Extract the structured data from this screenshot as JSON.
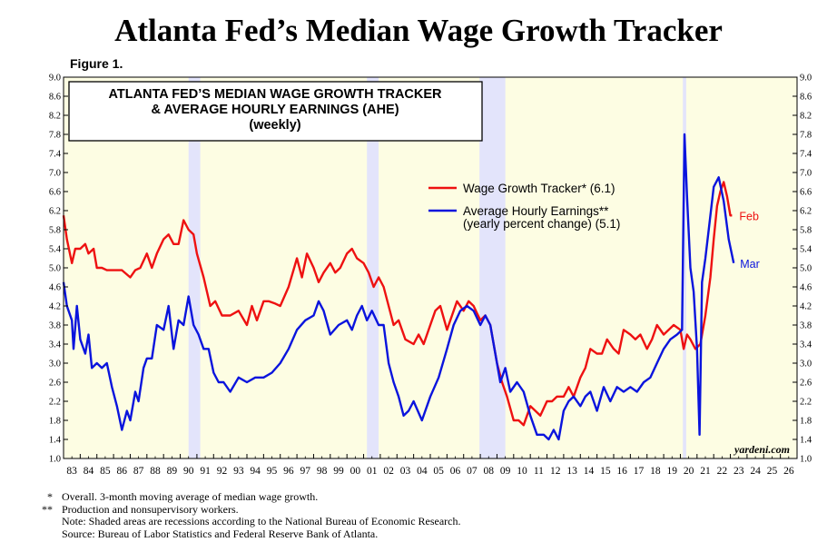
{
  "title": "Atlanta Fed’s Median Wage Growth Tracker",
  "figure_label": "Figure 1.",
  "source_watermark": "yardeni.com",
  "footnotes": [
    {
      "mark": "*",
      "text": "Overall. 3-month moving average of median wage growth."
    },
    {
      "mark": "**",
      "text": "Production and nonsupervisory workers."
    },
    {
      "mark": "",
      "text": "Note: Shaded areas are recessions according to the National Bureau of Economic Research."
    },
    {
      "mark": "",
      "text": "Source: Bureau of Labor Statistics and Federal Reserve Bank of Atlanta."
    }
  ],
  "colors": {
    "tracker": "#ee1111",
    "ahe": "#0a14dd",
    "plot_bg": "#fdfde3",
    "recession": "#e3e4fb"
  },
  "chart_data": {
    "type": "line",
    "title": "ATLANTA FED’S MEDIAN WAGE GROWTH TRACKER & AVERAGE HOURLY EARNINGS (AHE) (weekly)",
    "title_lines": [
      "ATLANTA FED’S MEDIAN WAGE GROWTH TRACKER",
      "& AVERAGE HOURLY EARNINGS (AHE)",
      "(weekly)"
    ],
    "xlabel": "",
    "ylabel": "",
    "xlim": [
      1983,
      2027
    ],
    "ylim": [
      1.0,
      9.0
    ],
    "yticks": [
      1.0,
      1.4,
      1.8,
      2.2,
      2.6,
      3.0,
      3.4,
      3.8,
      4.2,
      4.6,
      5.0,
      5.4,
      5.8,
      6.2,
      6.6,
      7.0,
      7.4,
      7.8,
      8.2,
      8.6,
      9.0
    ],
    "xtick_labels": [
      "83",
      "84",
      "85",
      "86",
      "87",
      "88",
      "89",
      "90",
      "91",
      "92",
      "93",
      "94",
      "95",
      "96",
      "97",
      "98",
      "99",
      "00",
      "01",
      "02",
      "03",
      "04",
      "05",
      "06",
      "07",
      "08",
      "09",
      "10",
      "11",
      "12",
      "13",
      "14",
      "15",
      "16",
      "17",
      "18",
      "19",
      "20",
      "21",
      "22",
      "23",
      "24",
      "25",
      "26"
    ],
    "grid": false,
    "legend_position": "upper-right",
    "recessions": [
      [
        1990.5,
        1991.2
      ],
      [
        2001.2,
        2001.9
      ],
      [
        2007.95,
        2009.5
      ],
      [
        2020.15,
        2020.35
      ]
    ],
    "series": [
      {
        "name": "Wage Growth Tracker* (6.1)",
        "end_label": "Feb",
        "x": [
          1983.0,
          1983.2,
          1983.5,
          1983.7,
          1984.0,
          1984.3,
          1984.5,
          1984.8,
          1985.0,
          1985.3,
          1985.6,
          1986.0,
          1986.5,
          1987.0,
          1987.3,
          1987.6,
          1988.0,
          1988.3,
          1988.6,
          1989.0,
          1989.3,
          1989.6,
          1989.9,
          1990.2,
          1990.5,
          1990.8,
          1991.0,
          1991.4,
          1991.8,
          1992.1,
          1992.5,
          1993.0,
          1993.5,
          1994.0,
          1994.3,
          1994.6,
          1995.0,
          1995.3,
          1995.7,
          1996.0,
          1996.5,
          1997.0,
          1997.3,
          1997.6,
          1998.0,
          1998.3,
          1998.6,
          1999.0,
          1999.3,
          1999.6,
          2000.0,
          2000.3,
          2000.6,
          2001.0,
          2001.3,
          2001.6,
          2001.9,
          2002.2,
          2002.5,
          2002.8,
          2003.1,
          2003.5,
          2004.0,
          2004.3,
          2004.6,
          2005.0,
          2005.3,
          2005.6,
          2006.0,
          2006.3,
          2006.6,
          2007.0,
          2007.3,
          2007.6,
          2008.0,
          2008.3,
          2008.6,
          2009.0,
          2009.3,
          2009.6,
          2010.0,
          2010.3,
          2010.6,
          2011.0,
          2011.3,
          2011.6,
          2012.0,
          2012.3,
          2012.6,
          2013.0,
          2013.3,
          2013.6,
          2014.0,
          2014.3,
          2014.6,
          2015.0,
          2015.3,
          2015.6,
          2016.0,
          2016.3,
          2016.6,
          2017.0,
          2017.3,
          2017.6,
          2018.0,
          2018.3,
          2018.6,
          2019.0,
          2019.3,
          2019.6,
          2020.0,
          2020.2,
          2020.4,
          2020.6,
          2020.9,
          2021.2,
          2021.5,
          2021.8,
          2022.0,
          2022.2,
          2022.4,
          2022.6,
          2022.8,
          2023.0,
          2023.1
        ],
        "y": [
          6.1,
          5.6,
          5.1,
          5.4,
          5.4,
          5.5,
          5.3,
          5.4,
          5.0,
          5.0,
          4.95,
          4.95,
          4.95,
          4.8,
          4.95,
          5.0,
          5.3,
          5.0,
          5.3,
          5.6,
          5.7,
          5.5,
          5.5,
          6.0,
          5.8,
          5.7,
          5.3,
          4.8,
          4.2,
          4.3,
          4.0,
          4.0,
          4.1,
          3.8,
          4.2,
          3.9,
          4.3,
          4.3,
          4.25,
          4.2,
          4.6,
          5.2,
          4.8,
          5.3,
          5.0,
          4.7,
          4.9,
          5.1,
          4.9,
          5.0,
          5.3,
          5.4,
          5.2,
          5.1,
          4.9,
          4.6,
          4.8,
          4.6,
          4.2,
          3.8,
          3.9,
          3.5,
          3.4,
          3.6,
          3.4,
          3.8,
          4.1,
          4.2,
          3.7,
          4.0,
          4.3,
          4.1,
          4.3,
          4.2,
          3.9,
          4.0,
          3.8,
          3.0,
          2.6,
          2.3,
          1.8,
          1.8,
          1.7,
          2.1,
          2.0,
          1.9,
          2.2,
          2.2,
          2.3,
          2.3,
          2.5,
          2.3,
          2.7,
          2.9,
          3.3,
          3.2,
          3.2,
          3.5,
          3.3,
          3.2,
          3.7,
          3.6,
          3.5,
          3.6,
          3.3,
          3.5,
          3.8,
          3.6,
          3.7,
          3.8,
          3.7,
          3.3,
          3.6,
          3.5,
          3.3,
          3.4,
          4.0,
          4.8,
          5.6,
          6.3,
          6.6,
          6.8,
          6.5,
          6.1,
          6.1
        ]
      },
      {
        "name": "Average Hourly Earnings** (yearly percent change) (5.1)",
        "legend_lines": [
          "Average Hourly Earnings**",
          "(yearly percent change) (5.1)"
        ],
        "end_label": "Mar",
        "x": [
          1983.0,
          1983.2,
          1983.5,
          1983.6,
          1983.8,
          1984.0,
          1984.3,
          1984.5,
          1984.7,
          1985.0,
          1985.3,
          1985.6,
          1985.9,
          1986.2,
          1986.5,
          1986.8,
          1987.0,
          1987.3,
          1987.5,
          1987.8,
          1988.0,
          1988.3,
          1988.6,
          1989.0,
          1989.3,
          1989.6,
          1989.9,
          1990.2,
          1990.5,
          1990.8,
          1991.1,
          1991.4,
          1991.7,
          1992.0,
          1992.3,
          1992.6,
          1993.0,
          1993.5,
          1994.0,
          1994.5,
          1995.0,
          1995.5,
          1996.0,
          1996.5,
          1997.0,
          1997.5,
          1998.0,
          1998.3,
          1998.6,
          1999.0,
          1999.5,
          2000.0,
          2000.3,
          2000.6,
          2000.9,
          2001.2,
          2001.5,
          2001.9,
          2002.2,
          2002.5,
          2002.8,
          2003.1,
          2003.4,
          2003.7,
          2004.0,
          2004.5,
          2005.0,
          2005.5,
          2006.0,
          2006.4,
          2006.8,
          2007.2,
          2007.6,
          2008.0,
          2008.3,
          2008.6,
          2008.9,
          2009.2,
          2009.5,
          2009.8,
          2010.2,
          2010.6,
          2011.0,
          2011.4,
          2011.8,
          2012.1,
          2012.4,
          2012.7,
          2013.0,
          2013.3,
          2013.6,
          2014.0,
          2014.3,
          2014.6,
          2015.0,
          2015.4,
          2015.8,
          2016.2,
          2016.6,
          2017.0,
          2017.4,
          2017.8,
          2018.2,
          2018.6,
          2019.0,
          2019.4,
          2019.8,
          2020.1,
          2020.25,
          2020.4,
          2020.6,
          2020.8,
          2021.0,
          2021.15,
          2021.3,
          2021.5,
          2021.7,
          2022.0,
          2022.3,
          2022.6,
          2022.9,
          2023.2
        ],
        "y": [
          4.7,
          4.2,
          3.9,
          3.3,
          4.2,
          3.5,
          3.2,
          3.6,
          2.9,
          3.0,
          2.9,
          3.0,
          2.5,
          2.1,
          1.6,
          2.0,
          1.8,
          2.4,
          2.2,
          2.9,
          3.1,
          3.1,
          3.8,
          3.7,
          4.2,
          3.3,
          3.9,
          3.8,
          4.4,
          3.8,
          3.6,
          3.3,
          3.3,
          2.8,
          2.6,
          2.6,
          2.4,
          2.7,
          2.6,
          2.7,
          2.7,
          2.8,
          3.0,
          3.3,
          3.7,
          3.9,
          4.0,
          4.3,
          4.1,
          3.6,
          3.8,
          3.9,
          3.7,
          4.0,
          4.2,
          3.9,
          4.1,
          3.8,
          3.8,
          3.0,
          2.6,
          2.3,
          1.9,
          2.0,
          2.2,
          1.8,
          2.3,
          2.7,
          3.3,
          3.8,
          4.1,
          4.2,
          4.1,
          3.8,
          4.0,
          3.8,
          3.2,
          2.6,
          2.9,
          2.4,
          2.6,
          2.4,
          1.9,
          1.5,
          1.5,
          1.4,
          1.6,
          1.4,
          2.0,
          2.2,
          2.3,
          2.1,
          2.3,
          2.4,
          2.0,
          2.5,
          2.2,
          2.5,
          2.4,
          2.5,
          2.4,
          2.6,
          2.7,
          3.0,
          3.3,
          3.5,
          3.6,
          3.7,
          7.8,
          6.5,
          5.0,
          4.5,
          3.3,
          1.5,
          4.7,
          5.2,
          5.8,
          6.7,
          6.9,
          6.4,
          5.6,
          5.1
        ]
      }
    ]
  }
}
